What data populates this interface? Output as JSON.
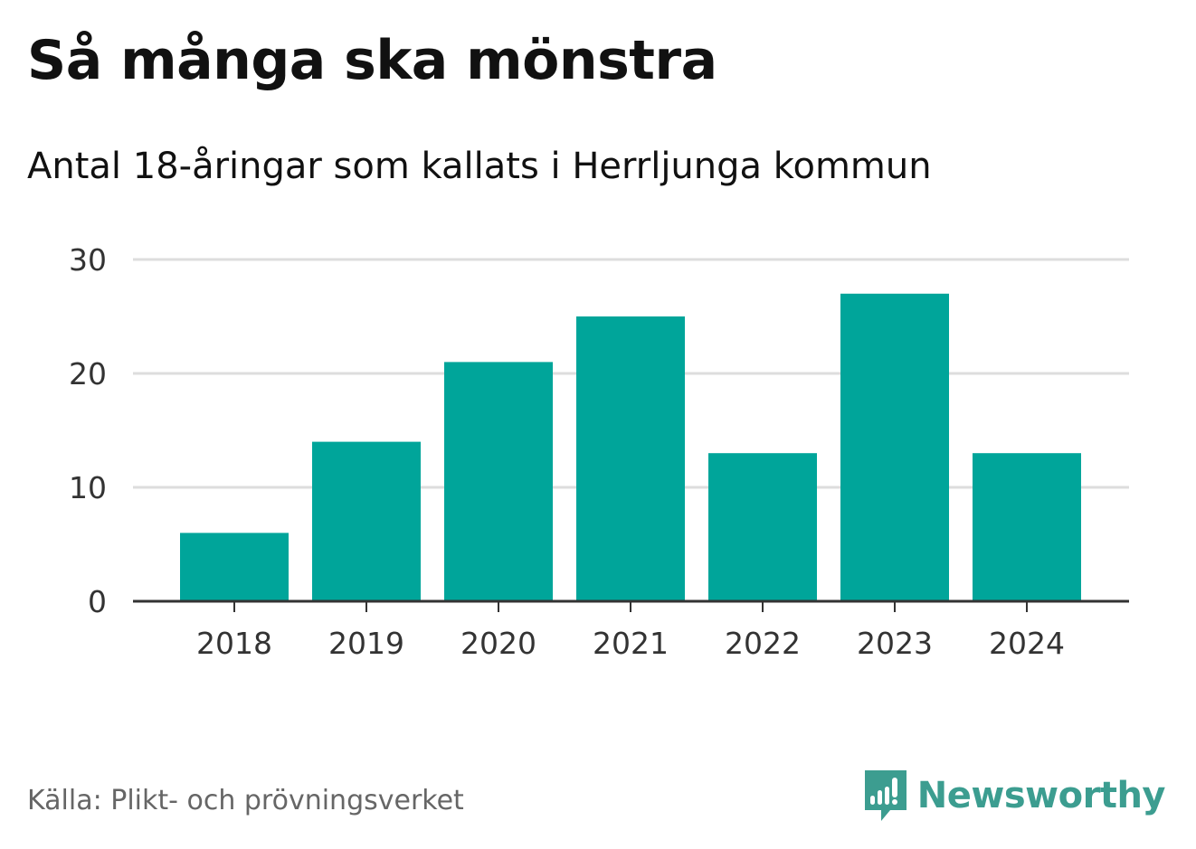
{
  "header": {
    "title": "Så många ska mönstra",
    "subtitle": "Antal 18-åringar som kallats i Herrljunga kommun"
  },
  "chart_data": {
    "type": "bar",
    "title": "Så många ska mönstra",
    "subtitle": "Antal 18-åringar som kallats i Herrljunga kommun",
    "xlabel": "",
    "ylabel": "",
    "categories": [
      "2018",
      "2019",
      "2020",
      "2021",
      "2022",
      "2023",
      "2024"
    ],
    "values": [
      6,
      14,
      21,
      25,
      13,
      27,
      13
    ],
    "ylim": [
      0,
      30
    ],
    "yticks": [
      0,
      10,
      20,
      30
    ],
    "grid": true,
    "legend": "none",
    "bar_color": "#00a59a",
    "grid_color": "#dddddd",
    "axis_color": "#333333"
  },
  "footer": {
    "source": "Källa: Plikt- och prövningsverket",
    "brand": "Newsworthy",
    "brand_color": "#3c9d90",
    "brand_icon": "newsworthy-logo-icon"
  }
}
